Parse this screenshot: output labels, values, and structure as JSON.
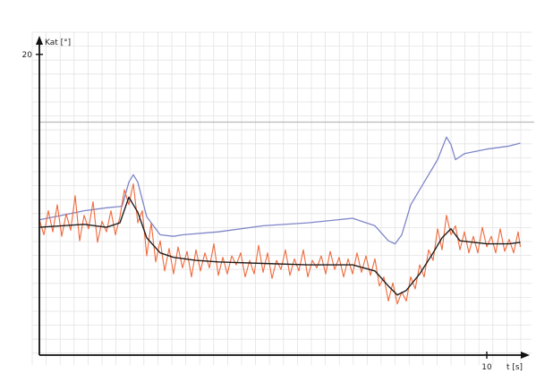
{
  "chart_data": {
    "type": "line",
    "title": "",
    "xlabel": "t [s]",
    "ylabel": "Kat [°]",
    "xlim": [
      0,
      10.8
    ],
    "ylim": [
      0,
      21
    ],
    "y_ticks": [
      20
    ],
    "x_ticks": [
      10
    ],
    "grid": true,
    "legend": "none",
    "colors": {
      "blue": "#7f86c8",
      "red": "#ef6a3c",
      "black": "#1e1e1e",
      "grid": "#e3e3e3",
      "reference": "#b9b9b9",
      "axis": "#111111"
    },
    "reference_line_y": 15.5,
    "series": [
      {
        "color_key": "blue",
        "x": [
          0,
          0.5,
          1.0,
          1.5,
          1.85,
          2.0,
          2.1,
          2.2,
          2.4,
          2.7,
          3.0,
          3.2,
          4.0,
          5.0,
          6.0,
          7.0,
          7.5,
          7.8,
          7.95,
          8.1,
          8.3,
          8.6,
          8.9,
          9.1,
          9.2,
          9.3,
          9.5,
          10.0,
          10.5,
          10.75
        ],
        "y": [
          9.0,
          9.3,
          9.6,
          9.8,
          9.9,
          11.5,
          12.0,
          11.5,
          9.2,
          8.0,
          7.9,
          8.0,
          8.2,
          8.6,
          8.8,
          9.1,
          8.6,
          7.6,
          7.4,
          8.0,
          10.0,
          11.5,
          13.0,
          14.5,
          14.0,
          13.0,
          13.4,
          13.7,
          13.9,
          14.1
        ]
      },
      {
        "color_key": "black",
        "x": [
          0,
          0.5,
          1.0,
          1.5,
          1.8,
          2.0,
          2.2,
          2.4,
          2.7,
          3.0,
          3.5,
          4.0,
          5.0,
          6.0,
          7.0,
          7.5,
          7.8,
          8.0,
          8.2,
          8.5,
          8.8,
          9.0,
          9.2,
          9.4,
          10.0,
          10.5,
          10.75
        ],
        "y": [
          8.5,
          8.6,
          8.7,
          8.5,
          8.8,
          10.5,
          9.5,
          7.8,
          6.8,
          6.5,
          6.3,
          6.2,
          6.1,
          6.0,
          6.0,
          5.6,
          4.6,
          4.0,
          4.3,
          5.4,
          6.8,
          7.8,
          8.4,
          7.6,
          7.4,
          7.4,
          7.5
        ]
      },
      {
        "color_key": "red",
        "x": [
          0,
          0.1,
          0.2,
          0.3,
          0.4,
          0.5,
          0.6,
          0.7,
          0.8,
          0.9,
          1.0,
          1.1,
          1.2,
          1.3,
          1.4,
          1.5,
          1.6,
          1.7,
          1.8,
          1.9,
          2.0,
          2.1,
          2.2,
          2.3,
          2.4,
          2.5,
          2.6,
          2.7,
          2.8,
          2.9,
          3.0,
          3.1,
          3.2,
          3.3,
          3.4,
          3.5,
          3.6,
          3.7,
          3.8,
          3.9,
          4.0,
          4.1,
          4.2,
          4.3,
          4.4,
          4.5,
          4.6,
          4.7,
          4.8,
          4.9,
          5.0,
          5.1,
          5.2,
          5.3,
          5.4,
          5.5,
          5.6,
          5.7,
          5.8,
          5.9,
          6.0,
          6.1,
          6.2,
          6.3,
          6.4,
          6.5,
          6.6,
          6.7,
          6.8,
          6.9,
          7.0,
          7.1,
          7.2,
          7.3,
          7.4,
          7.5,
          7.6,
          7.7,
          7.8,
          7.9,
          8.0,
          8.1,
          8.2,
          8.3,
          8.4,
          8.5,
          8.6,
          8.7,
          8.8,
          8.9,
          9.0,
          9.1,
          9.2,
          9.3,
          9.4,
          9.5,
          9.6,
          9.7,
          9.8,
          9.9,
          10.0,
          10.1,
          10.2,
          10.3,
          10.4,
          10.5,
          10.6,
          10.7,
          10.75
        ],
        "y": [
          9.0,
          8.0,
          9.6,
          8.2,
          10.0,
          7.9,
          9.4,
          8.3,
          10.6,
          7.6,
          9.3,
          8.4,
          10.2,
          7.5,
          8.9,
          8.2,
          9.6,
          8.0,
          9.2,
          11.0,
          10.0,
          11.4,
          8.8,
          9.6,
          6.6,
          8.8,
          6.2,
          7.6,
          5.6,
          7.1,
          5.4,
          7.2,
          5.8,
          6.9,
          5.2,
          7.0,
          5.6,
          6.8,
          5.8,
          7.4,
          5.3,
          6.5,
          5.4,
          6.6,
          6.0,
          6.8,
          5.2,
          6.3,
          5.4,
          7.3,
          5.5,
          6.8,
          5.1,
          6.3,
          5.7,
          7.0,
          5.3,
          6.4,
          5.6,
          7.0,
          5.2,
          6.3,
          5.8,
          6.6,
          5.4,
          6.9,
          5.7,
          6.5,
          5.2,
          6.4,
          5.4,
          6.8,
          5.5,
          6.6,
          5.3,
          6.4,
          4.6,
          5.2,
          3.6,
          4.8,
          3.4,
          4.2,
          3.6,
          5.2,
          4.4,
          6.0,
          5.2,
          7.0,
          6.3,
          8.4,
          7.0,
          9.3,
          8.0,
          8.6,
          7.0,
          8.2,
          6.8,
          7.9,
          6.8,
          8.5,
          7.2,
          7.9,
          6.8,
          8.4,
          6.9,
          7.7,
          6.8,
          8.2,
          7.2
        ]
      }
    ],
    "tick_labels": {
      "y20": "20",
      "x10": "10"
    }
  }
}
